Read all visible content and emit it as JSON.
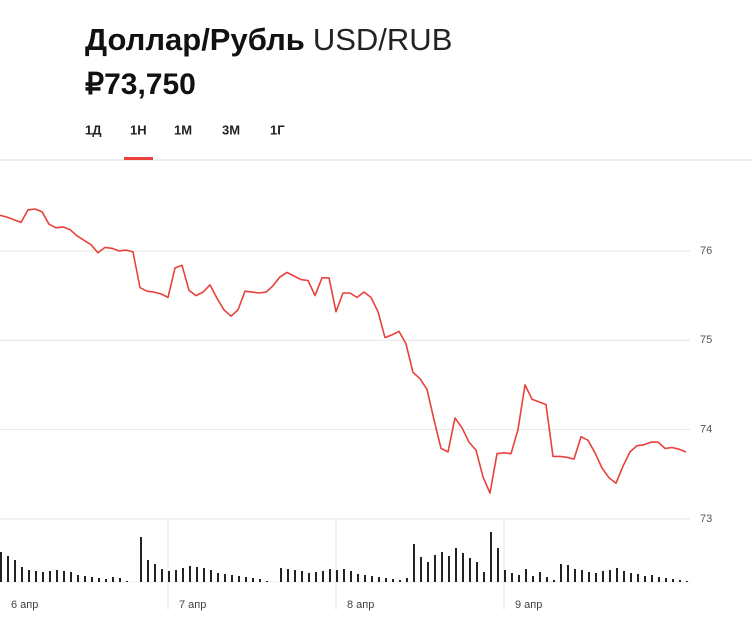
{
  "header": {
    "title": "Доллар/Рубль",
    "ticker": "USD/RUB",
    "price": "₽73,750"
  },
  "tabs": {
    "items": [
      "1Д",
      "1Н",
      "1М",
      "3М",
      "1Г"
    ],
    "active": 1,
    "active_color": "#e8413c"
  },
  "chart_data": {
    "type": "line",
    "categories": [
      "6 апр",
      null,
      null,
      null,
      null,
      null,
      null,
      null,
      null,
      null,
      null,
      null,
      null,
      null,
      null,
      null,
      null,
      null,
      null,
      null,
      null,
      null,
      null,
      null,
      "7 апр",
      null,
      null,
      null,
      null,
      null,
      null,
      null,
      null,
      null,
      null,
      null,
      null,
      null,
      null,
      null,
      null,
      null,
      null,
      null,
      null,
      null,
      null,
      null,
      "8 апр",
      null,
      null,
      null,
      null,
      null,
      null,
      null,
      null,
      null,
      null,
      null,
      null,
      null,
      null,
      null,
      null,
      null,
      null,
      null,
      null,
      null,
      null,
      null,
      "9 апр",
      null,
      null,
      null,
      null,
      null,
      null,
      null,
      null,
      null,
      null,
      null,
      null,
      null,
      null,
      null,
      null,
      null,
      null,
      null,
      null,
      null,
      null,
      null,
      null,
      null,
      null
    ],
    "series": [
      {
        "color": "#e8413c",
        "values": [
          76.4,
          76.38,
          76.35,
          76.32,
          76.46,
          76.47,
          76.44,
          76.3,
          76.26,
          76.27,
          76.24,
          76.17,
          76.12,
          76.07,
          75.98,
          76.04,
          76.03,
          76.0,
          76.01,
          75.99,
          75.59,
          75.55,
          75.54,
          75.52,
          75.48,
          75.81,
          75.84,
          75.56,
          75.5,
          75.54,
          75.62,
          75.47,
          75.34,
          75.27,
          75.34,
          75.55,
          75.54,
          75.53,
          75.54,
          75.61,
          75.71,
          75.76,
          75.72,
          75.68,
          75.67,
          75.5,
          75.7,
          75.7,
          75.32,
          75.53,
          75.53,
          75.48,
          75.54,
          75.48,
          75.32,
          75.03,
          75.06,
          75.1,
          74.96,
          74.64,
          74.57,
          74.45,
          74.11,
          73.79,
          73.75,
          74.13,
          74.02,
          73.86,
          73.77,
          73.47,
          73.29,
          73.73,
          73.74,
          73.73,
          74.0,
          74.5,
          74.34,
          74.31,
          74.28,
          73.7,
          73.7,
          73.69,
          73.67,
          73.92,
          73.88,
          73.74,
          73.57,
          73.46,
          73.4,
          73.59,
          73.75,
          73.82,
          73.83,
          73.86,
          73.86,
          73.79,
          73.8,
          73.78,
          73.75
        ]
      }
    ],
    "volume": {
      "color": "#222222",
      "values": [
        30,
        26,
        22,
        15,
        12,
        11,
        10,
        11,
        12,
        11,
        10,
        7,
        6,
        5,
        4,
        3,
        5,
        4,
        1,
        0,
        45,
        22,
        18,
        13,
        11,
        12,
        14,
        16,
        15,
        14,
        12,
        9,
        8,
        7,
        6,
        5,
        4,
        3,
        1,
        0,
        14,
        13,
        12,
        11,
        9,
        10,
        11,
        13,
        12,
        13,
        11,
        8,
        7,
        6,
        5,
        4,
        3,
        2,
        4,
        38,
        25,
        20,
        27,
        30,
        26,
        34,
        29,
        24,
        20,
        10,
        50,
        34,
        12,
        9,
        7,
        13,
        6,
        10,
        5,
        2,
        18,
        17,
        13,
        12,
        10,
        9,
        11,
        12,
        14,
        11,
        9,
        8,
        6,
        7,
        5,
        4,
        3,
        2,
        1
      ]
    },
    "ylim": [
      72.5,
      77.0
    ],
    "yticks": [
      73,
      74,
      75,
      76
    ],
    "grid": true
  }
}
